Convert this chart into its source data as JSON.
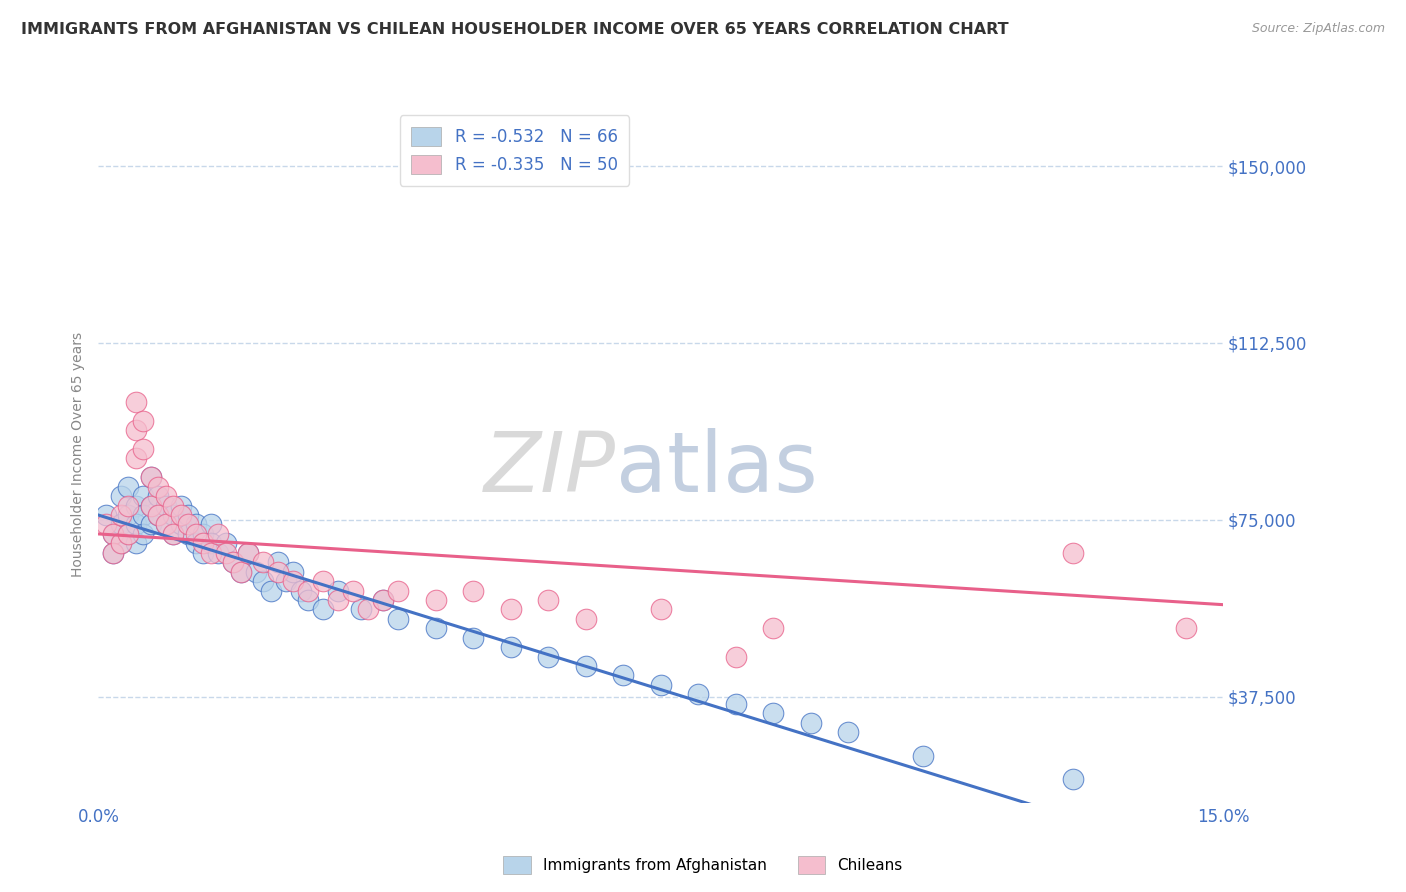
{
  "title": "IMMIGRANTS FROM AFGHANISTAN VS CHILEAN HOUSEHOLDER INCOME OVER 65 YEARS CORRELATION CHART",
  "source": "Source: ZipAtlas.com",
  "ylabel": "Householder Income Over 65 years",
  "x_tick_labels": [
    "0.0%",
    "15.0%"
  ],
  "y_tick_labels": [
    "$37,500",
    "$75,000",
    "$112,500",
    "$150,000"
  ],
  "y_tick_values": [
    37500,
    75000,
    112500,
    150000
  ],
  "y_min": 15000,
  "y_max": 162500,
  "x_min": 0.0,
  "x_max": 0.15,
  "legend1_label": "R = -0.532   N = 66",
  "legend2_label": "R = -0.335   N = 50",
  "afghanistan_color": "#b8d4ea",
  "chilean_color": "#f5bece",
  "afghanistan_line_color": "#4472c4",
  "chilean_line_color": "#e8608a",
  "afghanistan_scatter": [
    [
      0.001,
      76000
    ],
    [
      0.002,
      72000
    ],
    [
      0.002,
      68000
    ],
    [
      0.003,
      80000
    ],
    [
      0.003,
      74000
    ],
    [
      0.003,
      70000
    ],
    [
      0.004,
      82000
    ],
    [
      0.004,
      76000
    ],
    [
      0.004,
      72000
    ],
    [
      0.005,
      78000
    ],
    [
      0.005,
      74000
    ],
    [
      0.005,
      70000
    ],
    [
      0.006,
      80000
    ],
    [
      0.006,
      76000
    ],
    [
      0.006,
      72000
    ],
    [
      0.007,
      84000
    ],
    [
      0.007,
      78000
    ],
    [
      0.007,
      74000
    ],
    [
      0.008,
      80000
    ],
    [
      0.008,
      76000
    ],
    [
      0.009,
      78000
    ],
    [
      0.009,
      74000
    ],
    [
      0.01,
      76000
    ],
    [
      0.01,
      72000
    ],
    [
      0.011,
      78000
    ],
    [
      0.011,
      74000
    ],
    [
      0.012,
      76000
    ],
    [
      0.012,
      72000
    ],
    [
      0.013,
      74000
    ],
    [
      0.013,
      70000
    ],
    [
      0.014,
      72000
    ],
    [
      0.014,
      68000
    ],
    [
      0.015,
      74000
    ],
    [
      0.015,
      70000
    ],
    [
      0.016,
      68000
    ],
    [
      0.017,
      70000
    ],
    [
      0.018,
      66000
    ],
    [
      0.019,
      64000
    ],
    [
      0.02,
      68000
    ],
    [
      0.021,
      64000
    ],
    [
      0.022,
      62000
    ],
    [
      0.023,
      60000
    ],
    [
      0.024,
      66000
    ],
    [
      0.025,
      62000
    ],
    [
      0.026,
      64000
    ],
    [
      0.027,
      60000
    ],
    [
      0.028,
      58000
    ],
    [
      0.03,
      56000
    ],
    [
      0.032,
      60000
    ],
    [
      0.035,
      56000
    ],
    [
      0.038,
      58000
    ],
    [
      0.04,
      54000
    ],
    [
      0.045,
      52000
    ],
    [
      0.05,
      50000
    ],
    [
      0.055,
      48000
    ],
    [
      0.06,
      46000
    ],
    [
      0.065,
      44000
    ],
    [
      0.07,
      42000
    ],
    [
      0.075,
      40000
    ],
    [
      0.08,
      38000
    ],
    [
      0.085,
      36000
    ],
    [
      0.09,
      34000
    ],
    [
      0.095,
      32000
    ],
    [
      0.1,
      30000
    ],
    [
      0.11,
      25000
    ],
    [
      0.13,
      20000
    ]
  ],
  "chilean_scatter": [
    [
      0.001,
      74000
    ],
    [
      0.002,
      72000
    ],
    [
      0.002,
      68000
    ],
    [
      0.003,
      76000
    ],
    [
      0.003,
      70000
    ],
    [
      0.004,
      78000
    ],
    [
      0.004,
      72000
    ],
    [
      0.005,
      100000
    ],
    [
      0.005,
      94000
    ],
    [
      0.005,
      88000
    ],
    [
      0.006,
      96000
    ],
    [
      0.006,
      90000
    ],
    [
      0.007,
      84000
    ],
    [
      0.007,
      78000
    ],
    [
      0.008,
      82000
    ],
    [
      0.008,
      76000
    ],
    [
      0.009,
      80000
    ],
    [
      0.009,
      74000
    ],
    [
      0.01,
      78000
    ],
    [
      0.01,
      72000
    ],
    [
      0.011,
      76000
    ],
    [
      0.012,
      74000
    ],
    [
      0.013,
      72000
    ],
    [
      0.014,
      70000
    ],
    [
      0.015,
      68000
    ],
    [
      0.016,
      72000
    ],
    [
      0.017,
      68000
    ],
    [
      0.018,
      66000
    ],
    [
      0.019,
      64000
    ],
    [
      0.02,
      68000
    ],
    [
      0.022,
      66000
    ],
    [
      0.024,
      64000
    ],
    [
      0.026,
      62000
    ],
    [
      0.028,
      60000
    ],
    [
      0.03,
      62000
    ],
    [
      0.032,
      58000
    ],
    [
      0.034,
      60000
    ],
    [
      0.036,
      56000
    ],
    [
      0.038,
      58000
    ],
    [
      0.04,
      60000
    ],
    [
      0.045,
      58000
    ],
    [
      0.05,
      60000
    ],
    [
      0.055,
      56000
    ],
    [
      0.06,
      58000
    ],
    [
      0.065,
      54000
    ],
    [
      0.075,
      56000
    ],
    [
      0.085,
      46000
    ],
    [
      0.09,
      52000
    ],
    [
      0.13,
      68000
    ],
    [
      0.145,
      52000
    ]
  ],
  "background_color": "#ffffff",
  "grid_color": "#c8d8ea",
  "title_color": "#333333",
  "tick_label_color": "#4472c4",
  "watermark_zip": "ZIP",
  "watermark_atlas": "atlas",
  "watermark_color_zip": "#cccccc",
  "watermark_color_atlas": "#aabbd4"
}
